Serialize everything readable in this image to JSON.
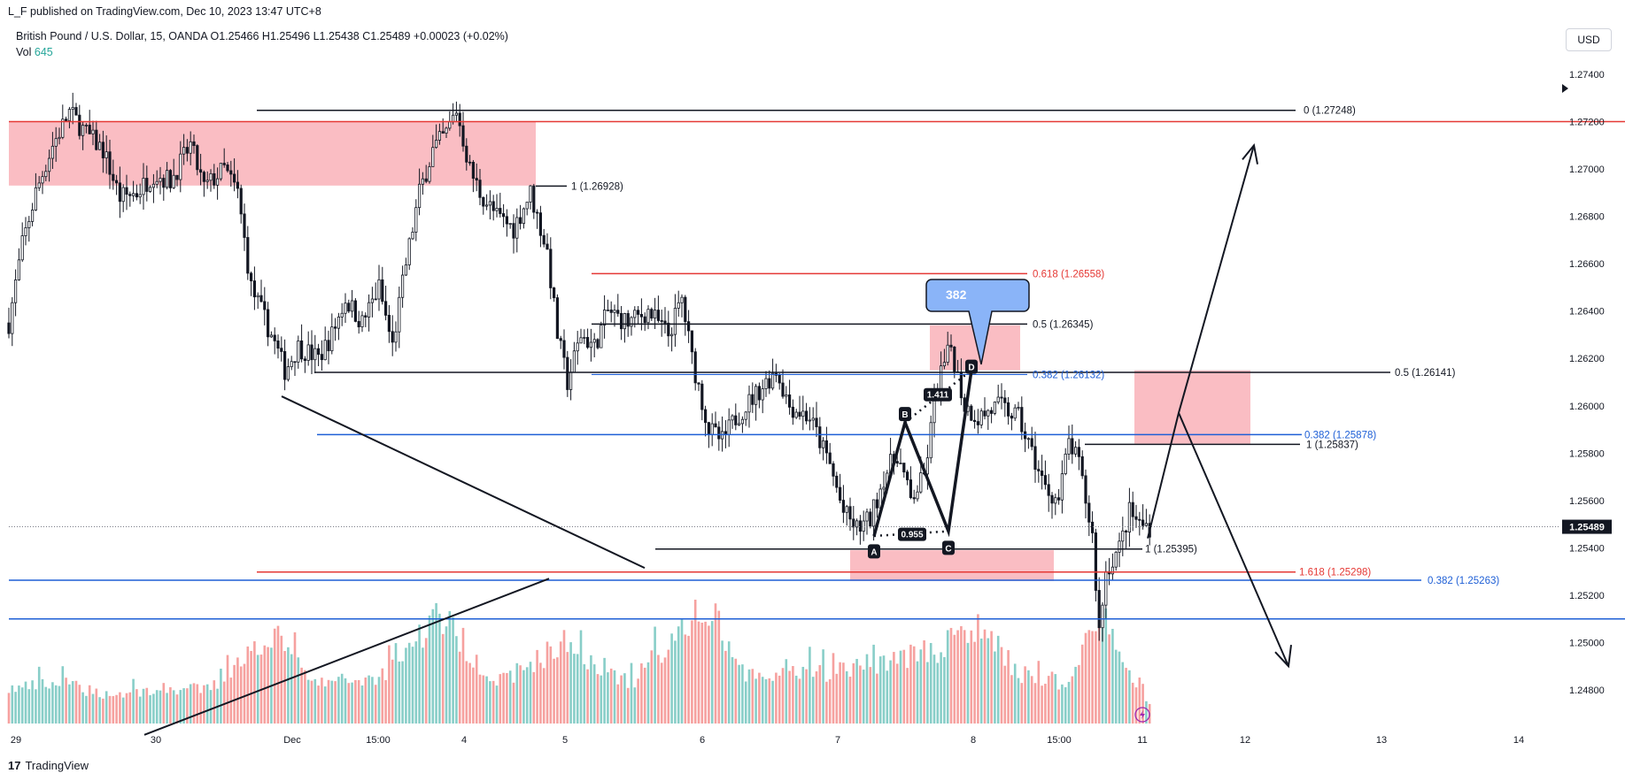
{
  "header": {
    "published": "L_F published on TradingView.com, Dec 10, 2023 13:47 UTC+8",
    "symbol_line": "British Pound / U.S. Dollar, 15, OANDA  O1.25466  H1.25496  L1.25438  C1.25489  +0.00023 (+0.02%)",
    "vol_label": "Vol",
    "vol_value": "645"
  },
  "currency_button": "USD",
  "footer": {
    "brand": "TradingView",
    "brand_mark": "17"
  },
  "colors": {
    "up": "#26a69a",
    "down": "#ef5350",
    "zone": "#f9b2b9",
    "red_line": "#e53935",
    "blue_line": "#1e5fd6",
    "callout": "#8ab4f8",
    "price_tag": "#131722"
  },
  "chart_data": {
    "type": "candlestick",
    "symbol": "GBPUSD",
    "timeframe": "15",
    "ylim": [
      1.2475,
      1.2743
    ],
    "x_ticks": [
      "29",
      "30",
      "Dec",
      "15:00",
      "4",
      "5",
      "6",
      "7",
      "8",
      "15:00",
      "11",
      "12",
      "13",
      "14"
    ],
    "y_ticks": [
      "1.27400",
      "1.27200",
      "1.27000",
      "1.26800",
      "1.26600",
      "1.26400",
      "1.26200",
      "1.26000",
      "1.25800",
      "1.25600",
      "1.25400",
      "1.25200",
      "1.25000",
      "1.24800"
    ],
    "y_tick_values": [
      1.274,
      1.272,
      1.27,
      1.268,
      1.266,
      1.264,
      1.262,
      1.26,
      1.258,
      1.256,
      1.254,
      1.252,
      1.25,
      1.248
    ],
    "last_price": "1.25489",
    "last_price_value": 1.25489,
    "price_path": [
      [
        0,
        1.2635
      ],
      [
        4,
        1.2668
      ],
      [
        8,
        1.269
      ],
      [
        13,
        1.271
      ],
      [
        18,
        1.2724
      ],
      [
        23,
        1.2715
      ],
      [
        28,
        1.2708
      ],
      [
        33,
        1.2688
      ],
      [
        38,
        1.269
      ],
      [
        43,
        1.2698
      ],
      [
        48,
        1.2695
      ],
      [
        54,
        1.271
      ],
      [
        58,
        1.2692
      ],
      [
        64,
        1.27
      ],
      [
        68,
        1.269
      ],
      [
        72,
        1.265
      ],
      [
        78,
        1.263
      ],
      [
        82,
        1.2615
      ],
      [
        86,
        1.2625
      ],
      [
        92,
        1.262
      ],
      [
        96,
        1.263
      ],
      [
        100,
        1.2645
      ],
      [
        105,
        1.2635
      ],
      [
        110,
        1.265
      ],
      [
        114,
        1.2625
      ],
      [
        118,
        1.266
      ],
      [
        122,
        1.269
      ],
      [
        126,
        1.2708
      ],
      [
        130,
        1.2715
      ],
      [
        133,
        1.2725
      ],
      [
        137,
        1.27
      ],
      [
        140,
        1.269
      ],
      [
        145,
        1.268
      ],
      [
        150,
        1.2675
      ],
      [
        155,
        1.269
      ],
      [
        160,
        1.2665
      ],
      [
        163,
        1.263
      ],
      [
        166,
        1.261
      ],
      [
        170,
        1.263
      ],
      [
        174,
        1.2625
      ],
      [
        178,
        1.264
      ],
      [
        184,
        1.2635
      ],
      [
        190,
        1.264
      ],
      [
        196,
        1.263
      ],
      [
        200,
        1.2645
      ],
      [
        203,
        1.262
      ],
      [
        208,
        1.259
      ],
      [
        212,
        1.2585
      ],
      [
        216,
        1.2595
      ],
      [
        222,
        1.2605
      ],
      [
        228,
        1.2615
      ],
      [
        232,
        1.26
      ],
      [
        238,
        1.2595
      ],
      [
        244,
        1.2575
      ],
      [
        248,
        1.2555
      ],
      [
        252,
        1.2548
      ],
      [
        256,
        1.2552
      ],
      [
        260,
        1.257
      ],
      [
        264,
        1.258
      ],
      [
        268,
        1.256
      ],
      [
        272,
        1.257
      ],
      [
        276,
        1.261
      ],
      [
        280,
        1.2625
      ],
      [
        284,
        1.26
      ],
      [
        288,
        1.2595
      ],
      [
        294,
        1.26
      ],
      [
        300,
        1.2595
      ],
      [
        304,
        1.258
      ],
      [
        308,
        1.2565
      ],
      [
        312,
        1.256
      ],
      [
        315,
        1.2585
      ],
      [
        318,
        1.2575
      ],
      [
        322,
        1.2545
      ],
      [
        324,
        1.2505
      ],
      [
        326,
        1.253
      ],
      [
        330,
        1.254
      ],
      [
        333,
        1.2555
      ],
      [
        336,
        1.255
      ],
      [
        339,
        1.2549
      ]
    ],
    "volume_profile": [
      [
        0,
        0.3
      ],
      [
        15,
        0.35
      ],
      [
        30,
        0.25
      ],
      [
        45,
        0.3
      ],
      [
        60,
        0.3
      ],
      [
        78,
        0.8
      ],
      [
        90,
        0.35
      ],
      [
        110,
        0.4
      ],
      [
        128,
        0.95
      ],
      [
        145,
        0.35
      ],
      [
        165,
        0.7
      ],
      [
        185,
        0.35
      ],
      [
        205,
        1.0
      ],
      [
        220,
        0.4
      ],
      [
        245,
        0.45
      ],
      [
        260,
        0.55
      ],
      [
        276,
        0.65
      ],
      [
        290,
        0.85
      ],
      [
        300,
        0.4
      ],
      [
        315,
        0.35
      ],
      [
        324,
        1.0
      ],
      [
        332,
        0.45
      ],
      [
        339,
        0.2
      ]
    ],
    "annotations": {
      "fib_labels": [
        {
          "text": "0 (1.27248)",
          "color": "#131722"
        },
        {
          "text": "1 (1.26928)",
          "color": "#131722"
        },
        {
          "text": "0.618 (1.26558)",
          "color": "#e53935"
        },
        {
          "text": "0.5 (1.26345)",
          "color": "#131722"
        },
        {
          "text": "0.382 (1.26132)",
          "color": "#1e5fd6"
        },
        {
          "text": "0.5 (1.26141)",
          "color": "#131722"
        },
        {
          "text": "0.382 (1.25878)",
          "color": "#1e5fd6"
        },
        {
          "text": "1 (1.25837)",
          "color": "#131722"
        },
        {
          "text": "1 (1.25395)",
          "color": "#131722"
        },
        {
          "text": "1.618 (1.25298)",
          "color": "#e53935"
        },
        {
          "text": "0.382 (1.25263)",
          "color": "#1e5fd6"
        }
      ],
      "pattern_points": [
        "A",
        "B",
        "C",
        "D"
      ],
      "pattern_ratios": [
        "0.955",
        "1.411"
      ],
      "callout": "382"
    }
  }
}
